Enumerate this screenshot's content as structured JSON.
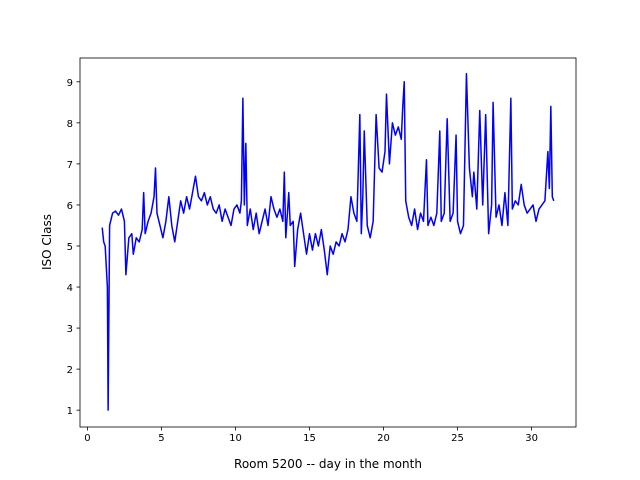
{
  "chart_data": {
    "type": "line",
    "xlabel": "Room 5200 -- day in the month",
    "ylabel": "ISO Class",
    "color": "#0000ff",
    "xlim": [
      -0.5,
      33.0
    ],
    "xticks": [
      0,
      5,
      10,
      15,
      20,
      25,
      30
    ],
    "ylim": [
      0.59,
      9.58
    ],
    "yticks": [
      1,
      2,
      3,
      4,
      5,
      6,
      7,
      8,
      9
    ],
    "x": [
      1.0,
      1.1,
      1.2,
      1.35,
      1.4,
      1.5,
      1.7,
      1.9,
      2.1,
      2.3,
      2.5,
      2.6,
      2.8,
      3.0,
      3.1,
      3.3,
      3.5,
      3.7,
      3.8,
      3.9,
      4.1,
      4.3,
      4.5,
      4.6,
      4.7,
      4.9,
      5.1,
      5.3,
      5.5,
      5.7,
      5.9,
      6.1,
      6.3,
      6.5,
      6.7,
      6.9,
      7.1,
      7.3,
      7.5,
      7.7,
      7.9,
      8.1,
      8.3,
      8.5,
      8.7,
      8.9,
      9.1,
      9.3,
      9.5,
      9.7,
      9.9,
      10.1,
      10.3,
      10.4,
      10.5,
      10.6,
      10.7,
      10.8,
      11.0,
      11.2,
      11.4,
      11.6,
      11.8,
      12.0,
      12.2,
      12.4,
      12.6,
      12.8,
      13.0,
      13.2,
      13.3,
      13.4,
      13.6,
      13.7,
      13.9,
      14.0,
      14.2,
      14.4,
      14.6,
      14.8,
      15.0,
      15.2,
      15.4,
      15.6,
      15.8,
      16.0,
      16.2,
      16.4,
      16.6,
      16.8,
      17.0,
      17.2,
      17.4,
      17.6,
      17.8,
      18.0,
      18.2,
      18.4,
      18.5,
      18.6,
      18.7,
      18.9,
      19.1,
      19.3,
      19.5,
      19.7,
      19.9,
      20.1,
      20.2,
      20.4,
      20.6,
      20.8,
      21.0,
      21.2,
      21.3,
      21.4,
      21.5,
      21.7,
      21.9,
      22.1,
      22.3,
      22.5,
      22.7,
      22.9,
      23.0,
      23.2,
      23.4,
      23.6,
      23.8,
      23.9,
      24.1,
      24.3,
      24.5,
      24.7,
      24.9,
      25.0,
      25.2,
      25.4,
      25.6,
      25.8,
      26.0,
      26.1,
      26.3,
      26.5,
      26.7,
      26.9,
      27.1,
      27.3,
      27.4,
      27.6,
      27.8,
      28.0,
      28.2,
      28.4,
      28.6,
      28.7,
      28.9,
      29.1,
      29.3,
      29.5,
      29.7,
      29.9,
      30.1,
      30.3,
      30.5,
      30.7,
      30.9,
      31.1,
      31.2,
      31.3,
      31.4,
      31.5
    ],
    "values": [
      5.45,
      5.1,
      5.0,
      4.0,
      1.0,
      5.5,
      5.8,
      5.85,
      5.75,
      5.9,
      5.6,
      4.3,
      5.2,
      5.3,
      4.8,
      5.2,
      5.1,
      5.4,
      6.3,
      5.3,
      5.6,
      5.8,
      6.2,
      6.9,
      5.8,
      5.5,
      5.2,
      5.6,
      6.2,
      5.5,
      5.1,
      5.6,
      6.1,
      5.8,
      6.2,
      5.9,
      6.3,
      6.7,
      6.2,
      6.1,
      6.3,
      6.0,
      6.2,
      5.9,
      5.8,
      6.0,
      5.6,
      5.9,
      5.7,
      5.5,
      5.9,
      6.0,
      5.8,
      6.1,
      8.6,
      6.0,
      7.5,
      5.5,
      5.9,
      5.4,
      5.8,
      5.3,
      5.6,
      5.9,
      5.5,
      6.2,
      5.9,
      5.7,
      5.9,
      5.6,
      6.8,
      5.2,
      6.3,
      5.5,
      5.6,
      4.5,
      5.4,
      5.8,
      5.3,
      4.8,
      5.3,
      4.9,
      5.3,
      5.0,
      5.4,
      4.9,
      4.3,
      5.0,
      4.8,
      5.1,
      5.0,
      5.3,
      5.1,
      5.4,
      6.2,
      5.8,
      5.6,
      8.2,
      5.3,
      6.2,
      7.8,
      5.5,
      5.2,
      5.6,
      8.2,
      6.9,
      6.8,
      7.3,
      8.7,
      7.0,
      8.0,
      7.7,
      7.9,
      7.6,
      8.4,
      9.0,
      6.1,
      5.7,
      5.5,
      5.9,
      5.4,
      5.8,
      5.6,
      7.1,
      5.5,
      5.7,
      5.5,
      5.8,
      7.8,
      5.6,
      5.8,
      8.1,
      5.6,
      5.8,
      7.7,
      5.6,
      5.3,
      5.5,
      9.2,
      6.9,
      6.2,
      6.8,
      5.9,
      8.3,
      6.0,
      8.2,
      5.3,
      6.0,
      8.5,
      5.7,
      6.0,
      5.5,
      6.3,
      5.5,
      8.6,
      5.9,
      6.1,
      6.0,
      6.5,
      6.0,
      5.8,
      5.9,
      6.0,
      5.6,
      5.9,
      6.0,
      6.1,
      7.3,
      6.4,
      8.4,
      6.2,
      6.1
    ]
  }
}
